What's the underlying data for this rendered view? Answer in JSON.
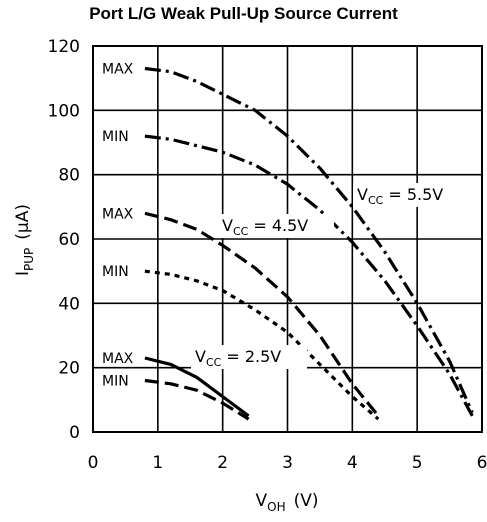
{
  "chart_data": {
    "type": "line",
    "title": "Port L/G Weak Pull-Up Source Current",
    "xlabel": {
      "main": "V",
      "sub": "OH",
      "unit": "(V)"
    },
    "ylabel": {
      "main": "I",
      "sub": "PUP",
      "unit": "(μA)"
    },
    "xlim": [
      0,
      6
    ],
    "ylim": [
      0,
      120
    ],
    "xticks": [
      0,
      1,
      2,
      3,
      4,
      5,
      6
    ],
    "yticks": [
      0,
      20,
      40,
      60,
      80,
      100,
      120
    ],
    "grid": true,
    "series": [
      {
        "name": "MAX",
        "group": "5.5V",
        "style": "dashdot",
        "x": [
          0.8,
          1.2,
          1.6,
          2.0,
          2.5,
          3.0,
          3.5,
          4.0,
          4.5,
          5.0,
          5.5,
          5.85
        ],
        "y": [
          113,
          112,
          109,
          105,
          100,
          92,
          82,
          70,
          56,
          40,
          22,
          6
        ]
      },
      {
        "name": "MIN",
        "group": "5.5V",
        "style": "dashdot",
        "x": [
          0.8,
          1.2,
          1.6,
          2.0,
          2.5,
          3.0,
          3.5,
          4.0,
          4.5,
          5.0,
          5.5,
          5.85
        ],
        "y": [
          92,
          91,
          89,
          87,
          83,
          77,
          69,
          59,
          47,
          33,
          18,
          5
        ]
      },
      {
        "name": "MAX",
        "group": "4.5V",
        "style": "dashed",
        "x": [
          0.8,
          1.2,
          1.6,
          2.0,
          2.5,
          3.0,
          3.5,
          4.0,
          4.4
        ],
        "y": [
          68,
          66,
          63,
          58,
          51,
          42,
          30,
          15,
          5
        ]
      },
      {
        "name": "MIN",
        "group": "4.5V",
        "style": "dotted",
        "x": [
          0.8,
          1.2,
          1.6,
          2.0,
          2.5,
          3.0,
          3.5,
          4.0,
          4.4
        ],
        "y": [
          50,
          49,
          47,
          44,
          38,
          31,
          21,
          11,
          4
        ]
      },
      {
        "name": "MAX",
        "group": "2.5V",
        "style": "solid",
        "x": [
          0.8,
          1.2,
          1.6,
          2.0,
          2.4
        ],
        "y": [
          23,
          21,
          17,
          11,
          5
        ]
      },
      {
        "name": "MIN",
        "group": "2.5V",
        "style": "dashed",
        "x": [
          0.8,
          1.2,
          1.6,
          2.0,
          2.4
        ],
        "y": [
          16,
          15,
          13,
          9,
          4
        ]
      }
    ],
    "annotations": [
      {
        "main": "V",
        "sub": "CC",
        "value": "= 5.5V"
      },
      {
        "main": "V",
        "sub": "CC",
        "value": "= 4.5V"
      },
      {
        "main": "V",
        "sub": "CC",
        "value": "= 2.5V"
      }
    ]
  }
}
